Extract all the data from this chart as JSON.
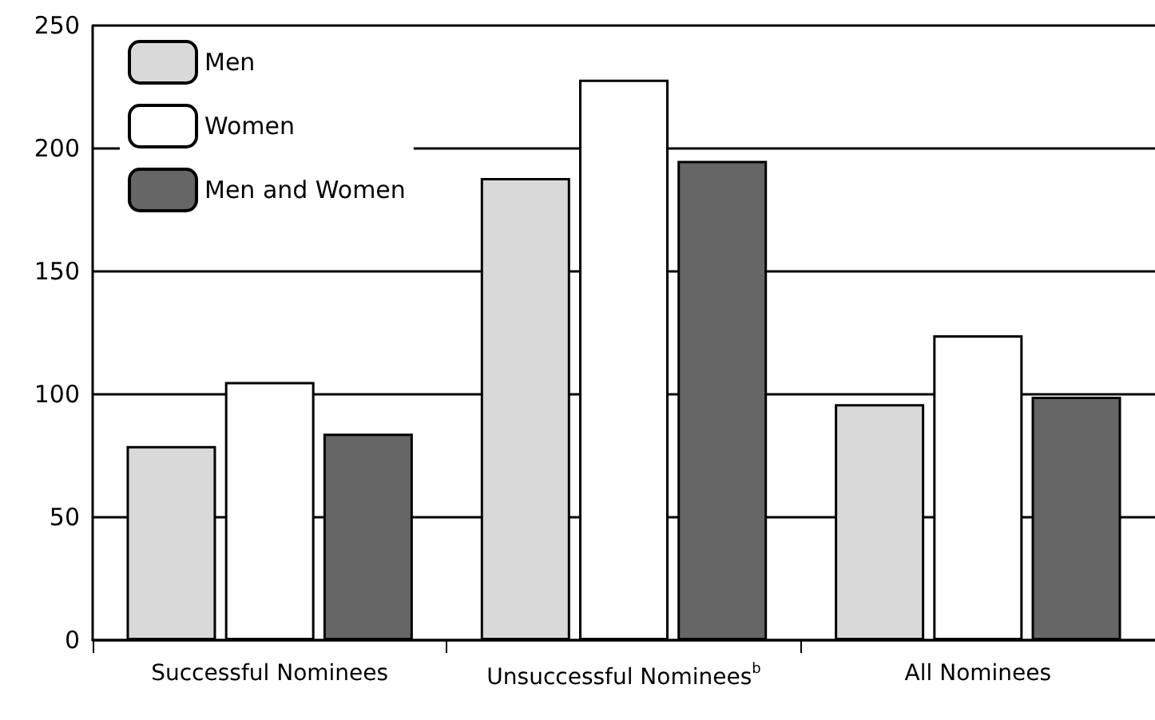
{
  "chart_data": {
    "type": "bar",
    "categories": [
      "Successful Nominees",
      "Unsuccessful Nominees$^{b}$",
      "All Nominees"
    ],
    "series": [
      {
        "name": "Men",
        "color": "#d9d9d9",
        "values": [
          79,
          188,
          96
        ]
      },
      {
        "name": "Women",
        "color": "#ffffff",
        "values": [
          105,
          228,
          124
        ]
      },
      {
        "name": "Men and Women",
        "color": "#666666",
        "values": [
          84,
          195,
          99
        ]
      }
    ],
    "ylim": [
      0,
      250
    ],
    "yticks": [
      0,
      50,
      100,
      150,
      200,
      250
    ],
    "grid": "y",
    "legend": "top left"
  }
}
